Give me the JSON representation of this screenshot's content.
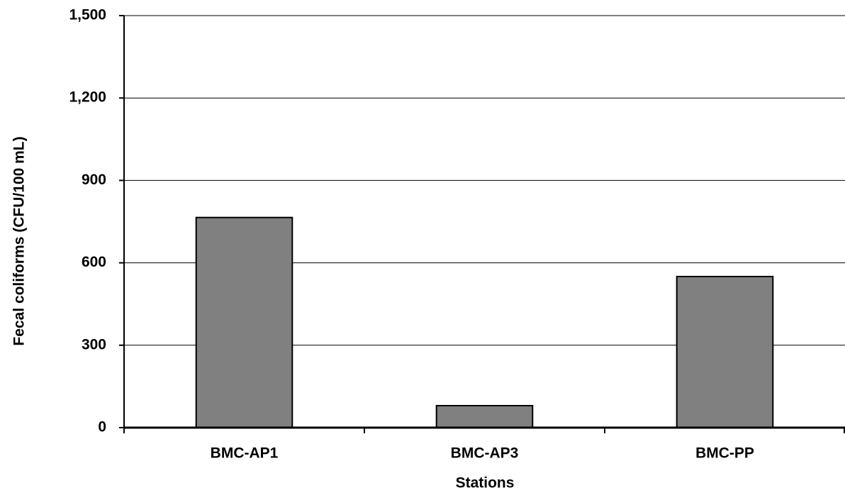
{
  "chart_data": {
    "type": "bar",
    "x_label": "Stations",
    "y_label": "Fecal coliforms (CFU/100 mL)",
    "categories": [
      "BMC-AP1",
      "BMC-AP3",
      "BMC-PP"
    ],
    "values": [
      765,
      80,
      550
    ],
    "color": "#808080",
    "ylim": [
      0,
      1500
    ],
    "yticks": [
      0,
      300,
      600,
      900,
      {
        "value": 1200,
        "label": "1,200"
      },
      {
        "value": 1500,
        "label": "1,500"
      }
    ],
    "grid": true
  }
}
